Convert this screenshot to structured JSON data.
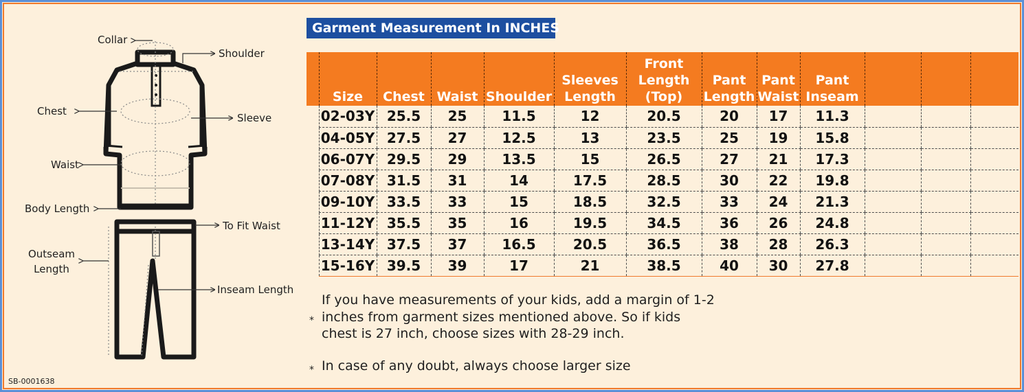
{
  "title": "Garment Measurement In INCHES",
  "sku": "SB-0001638",
  "diagram_labels": {
    "collar": "Collar",
    "shoulder": "Shoulder",
    "chest": "Chest",
    "sleeve": "Sleeve",
    "waist": "Waist",
    "body_length": "Body Length",
    "to_fit_waist": "To Fit Waist",
    "outseam_line1": "Outseam",
    "outseam_line2": "Length",
    "inseam_length": "Inseam Length"
  },
  "table": {
    "headers": [
      [
        "Size"
      ],
      [
        "Chest"
      ],
      [
        "Waist"
      ],
      [
        "Shoulder"
      ],
      [
        "Sleeves",
        "Length"
      ],
      [
        "Front",
        "Length",
        "(Top)"
      ],
      [
        "Pant",
        "Length"
      ],
      [
        "Pant",
        "Waist"
      ],
      [
        "Pant",
        "Inseam"
      ]
    ],
    "rows": [
      [
        "02-03Y",
        "25.5",
        "25",
        "11.5",
        "12",
        "20.5",
        "20",
        "17",
        "11.3"
      ],
      [
        "04-05Y",
        "27.5",
        "27",
        "12.5",
        "13",
        "23.5",
        "25",
        "19",
        "15.8"
      ],
      [
        "06-07Y",
        "29.5",
        "29",
        "13.5",
        "15",
        "26.5",
        "27",
        "21",
        "17.3"
      ],
      [
        "07-08Y",
        "31.5",
        "31",
        "14",
        "17.5",
        "28.5",
        "30",
        "22",
        "19.8"
      ],
      [
        "09-10Y",
        "33.5",
        "33",
        "15",
        "18.5",
        "32.5",
        "33",
        "24",
        "21.3"
      ],
      [
        "11-12Y",
        "35.5",
        "35",
        "16",
        "19.5",
        "34.5",
        "36",
        "26",
        "24.8"
      ],
      [
        "13-14Y",
        "37.5",
        "37",
        "16.5",
        "20.5",
        "36.5",
        "38",
        "28",
        "26.3"
      ],
      [
        "15-16Y",
        "39.5",
        "39",
        "17",
        "21",
        "38.5",
        "40",
        "30",
        "27.8"
      ]
    ]
  },
  "notes": [
    {
      "bullet": "*",
      "lines": [
        "If you have measurements of your kids, add a margin of 1-2",
        "inches from garment sizes mentioned above. So if kids",
        "chest is 27 inch, choose sizes with 28-29 inch."
      ]
    },
    {
      "bullet": "*",
      "lines": [
        "In case of any doubt, always choose larger size"
      ]
    }
  ],
  "colors": {
    "header_orange": "#f47b20",
    "title_blue": "#1d4fa0",
    "background": "#fdf0dc",
    "outer_border": "#5b8fd6"
  }
}
